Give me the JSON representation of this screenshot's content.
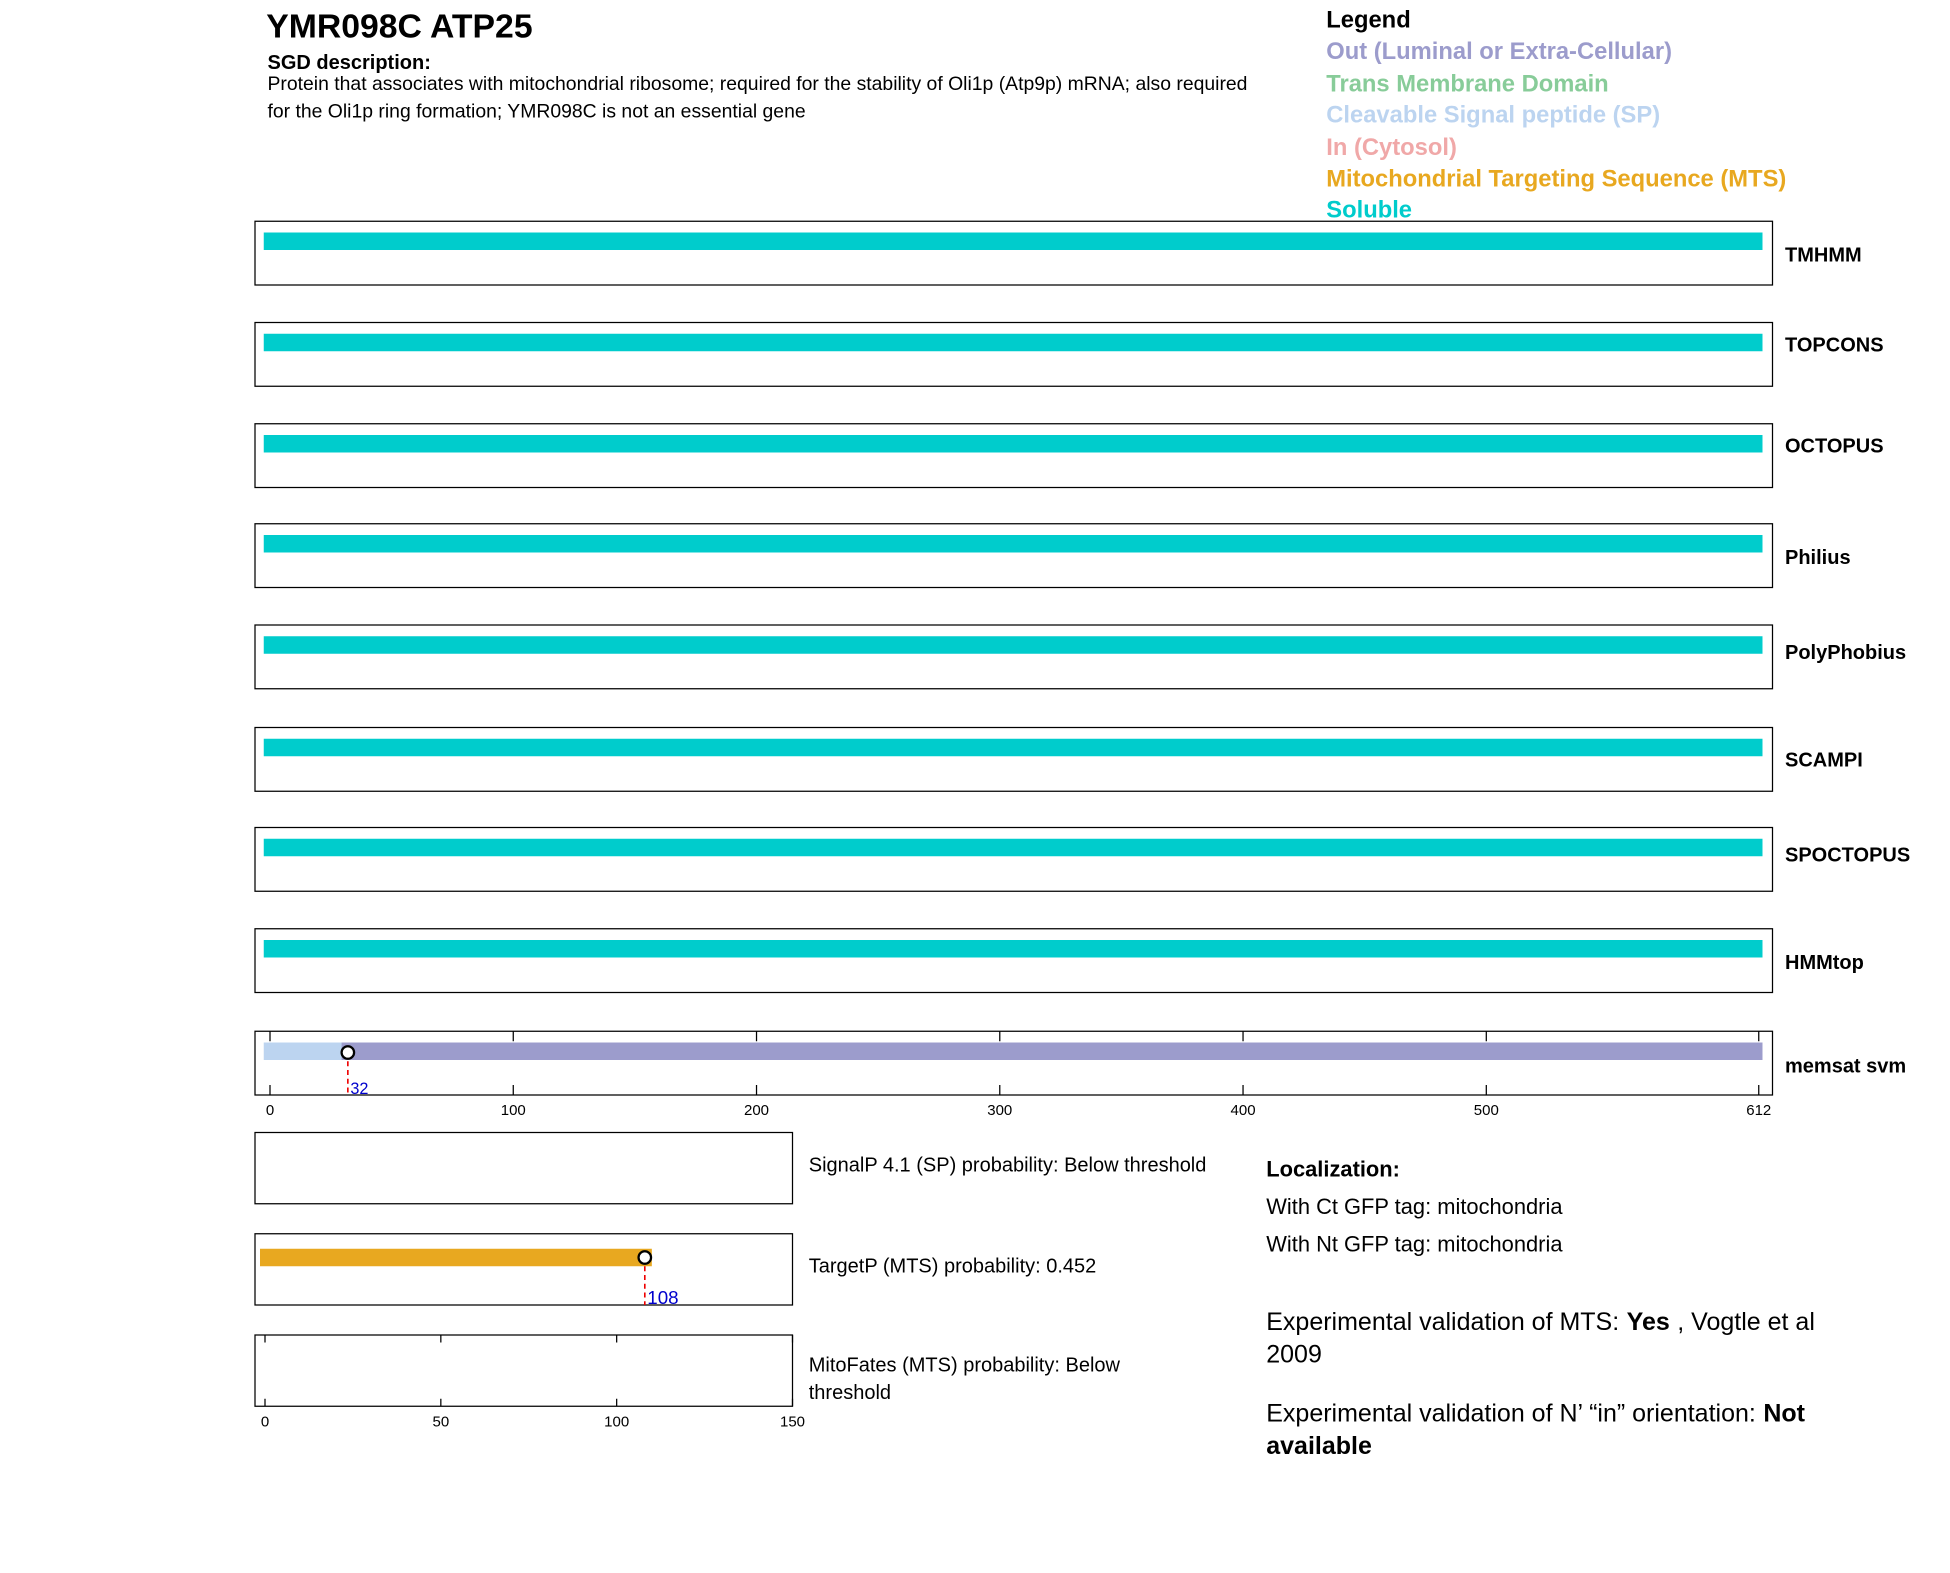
{
  "title": "YMR098C  ATP25",
  "description_label": "SGD description:",
  "description": "Protein that associates with mitochondrial ribosome; required for the stability of Oli1p (Atp9p) mRNA; also required for the Oli1p ring formation; YMR098C is not an essential gene",
  "legend": {
    "title": "Legend",
    "items": [
      {
        "label": "Out (Luminal or Extra-Cellular)",
        "color": "#9c9ccc"
      },
      {
        "label": "Trans Membrane Domain",
        "color": "#88cc99"
      },
      {
        "label": "Cleavable Signal peptide (SP)",
        "color": "#bcd4f0"
      },
      {
        "label": "In (Cytosol)",
        "color": "#f0a8a8"
      },
      {
        "label": "Mitochondrial Targeting Sequence (MTS)",
        "color": "#e8a820"
      },
      {
        "label": "Soluble",
        "color": "#00cccc"
      }
    ]
  },
  "protein_axis": {
    "xlim": [
      0,
      612
    ],
    "xticks": [
      0,
      100,
      200,
      300,
      400,
      500,
      612
    ]
  },
  "tracks": [
    {
      "name": "TMHMM",
      "segments": [
        {
          "start": 0,
          "end": 612,
          "color": "#00cccc"
        }
      ]
    },
    {
      "name": "TOPCONS",
      "segments": [
        {
          "start": 0,
          "end": 612,
          "color": "#00cccc"
        }
      ]
    },
    {
      "name": "OCTOPUS",
      "segments": [
        {
          "start": 0,
          "end": 612,
          "color": "#00cccc"
        }
      ]
    },
    {
      "name": "Philius",
      "segments": [
        {
          "start": 0,
          "end": 612,
          "color": "#00cccc"
        }
      ]
    },
    {
      "name": "PolyPhobius",
      "segments": [
        {
          "start": 0,
          "end": 612,
          "color": "#00cccc"
        }
      ]
    },
    {
      "name": "SCAMPI",
      "segments": [
        {
          "start": 0,
          "end": 612,
          "color": "#00cccc"
        }
      ]
    },
    {
      "name": "SPOCTOPUS",
      "segments": [
        {
          "start": 0,
          "end": 612,
          "color": "#00cccc"
        }
      ]
    },
    {
      "name": "HMMtop",
      "segments": [
        {
          "start": 0,
          "end": 612,
          "color": "#00cccc"
        }
      ]
    },
    {
      "name": "memsat svm",
      "segments": [
        {
          "start": 0,
          "end": 32,
          "color": "#bcd4f0"
        },
        {
          "start": 32,
          "end": 612,
          "color": "#9c9ccc"
        }
      ],
      "marker": 32
    }
  ],
  "mts_axis": {
    "xlim": [
      0,
      150
    ],
    "xticks": [
      0,
      50,
      100,
      150
    ]
  },
  "panels": [
    {
      "label": "SignalP 4.1 (SP) probability: Below threshold"
    },
    {
      "label": "TargetP (MTS) probability: 0.452",
      "segments": [
        {
          "start": 0,
          "end": 110,
          "color": "#e8a820"
        }
      ],
      "marker": 108
    },
    {
      "label": "MitoFates (MTS) probability: Below threshold"
    }
  ],
  "localization": {
    "title": "Localization:",
    "lines": [
      "With Ct GFP tag: mitochondria",
      "With Nt GFP tag: mitochondria"
    ]
  },
  "validation": [
    {
      "prefix": "Experimental validation of MTS:",
      "bold": "Yes",
      "suffix": ", Vogtle et al 2009"
    },
    {
      "prefix": "Experimental validation of N’ “in” orientation:",
      "bold": "Not available"
    }
  ]
}
